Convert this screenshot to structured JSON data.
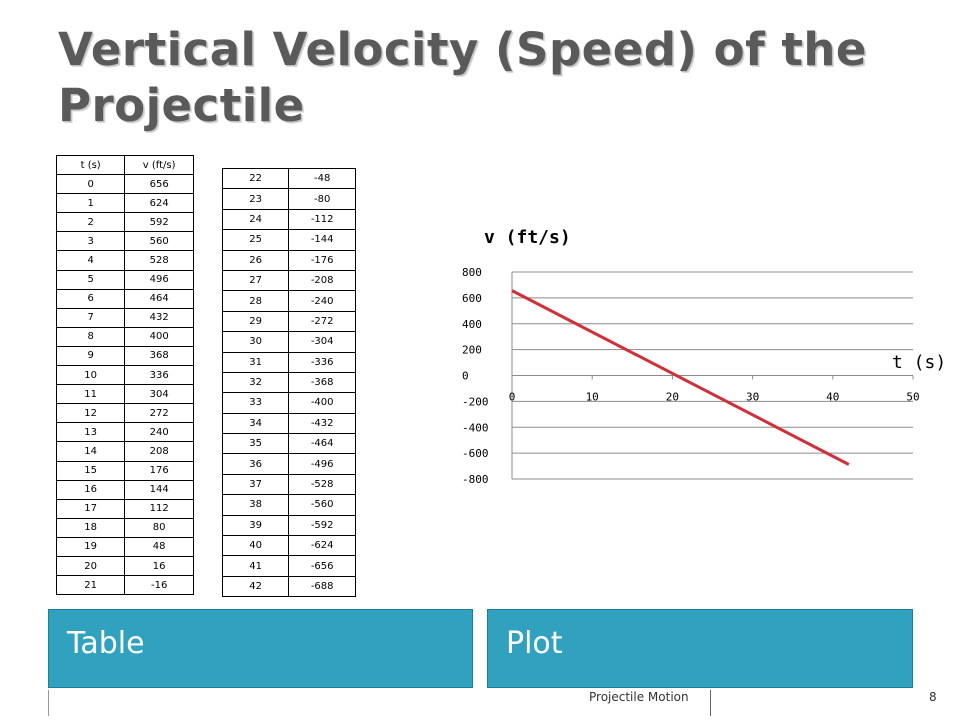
{
  "slide": {
    "title": "Vertical Velocity (Speed) of the Projectile",
    "footer": "Projectile Motion",
    "page_number": "8"
  },
  "labels": {
    "table": "Table",
    "plot": "Plot"
  },
  "table": {
    "headers": [
      "t (s)",
      "v (ft/s)"
    ],
    "rows_left": [
      [
        "0",
        "656"
      ],
      [
        "1",
        "624"
      ],
      [
        "2",
        "592"
      ],
      [
        "3",
        "560"
      ],
      [
        "4",
        "528"
      ],
      [
        "5",
        "496"
      ],
      [
        "6",
        "464"
      ],
      [
        "7",
        "432"
      ],
      [
        "8",
        "400"
      ],
      [
        "9",
        "368"
      ],
      [
        "10",
        "336"
      ],
      [
        "11",
        "304"
      ],
      [
        "12",
        "272"
      ],
      [
        "13",
        "240"
      ],
      [
        "14",
        "208"
      ],
      [
        "15",
        "176"
      ],
      [
        "16",
        "144"
      ],
      [
        "17",
        "112"
      ],
      [
        "18",
        "80"
      ],
      [
        "19",
        "48"
      ],
      [
        "20",
        "16"
      ],
      [
        "21",
        "-16"
      ]
    ],
    "rows_right": [
      [
        "22",
        "-48"
      ],
      [
        "23",
        "-80"
      ],
      [
        "24",
        "-112"
      ],
      [
        "25",
        "-144"
      ],
      [
        "26",
        "-176"
      ],
      [
        "27",
        "-208"
      ],
      [
        "28",
        "-240"
      ],
      [
        "29",
        "-272"
      ],
      [
        "30",
        "-304"
      ],
      [
        "31",
        "-336"
      ],
      [
        "32",
        "-368"
      ],
      [
        "33",
        "-400"
      ],
      [
        "34",
        "-432"
      ],
      [
        "35",
        "-464"
      ],
      [
        "36",
        "-496"
      ],
      [
        "37",
        "-528"
      ],
      [
        "38",
        "-560"
      ],
      [
        "39",
        "-592"
      ],
      [
        "40",
        "-624"
      ],
      [
        "41",
        "-656"
      ],
      [
        "42",
        "-688"
      ]
    ]
  },
  "chart_data": {
    "type": "line",
    "title": "v (ft/s)",
    "xlabel": "t (s)",
    "ylabel": "",
    "xlim": [
      0,
      50
    ],
    "ylim": [
      -800,
      800
    ],
    "xticks": [
      "0",
      "10",
      "20",
      "30",
      "40",
      "50"
    ],
    "yticks": [
      "800",
      "600",
      "400",
      "200",
      "0",
      "-200",
      "-400",
      "-600",
      "-800"
    ],
    "grid": "horizontal",
    "line_color": "#d0303a",
    "series": [
      {
        "x": [
          0,
          42
        ],
        "values": [
          656,
          -688
        ]
      }
    ]
  },
  "colors": {
    "bar": "#30a2bf",
    "title": "#5a5a5a"
  }
}
